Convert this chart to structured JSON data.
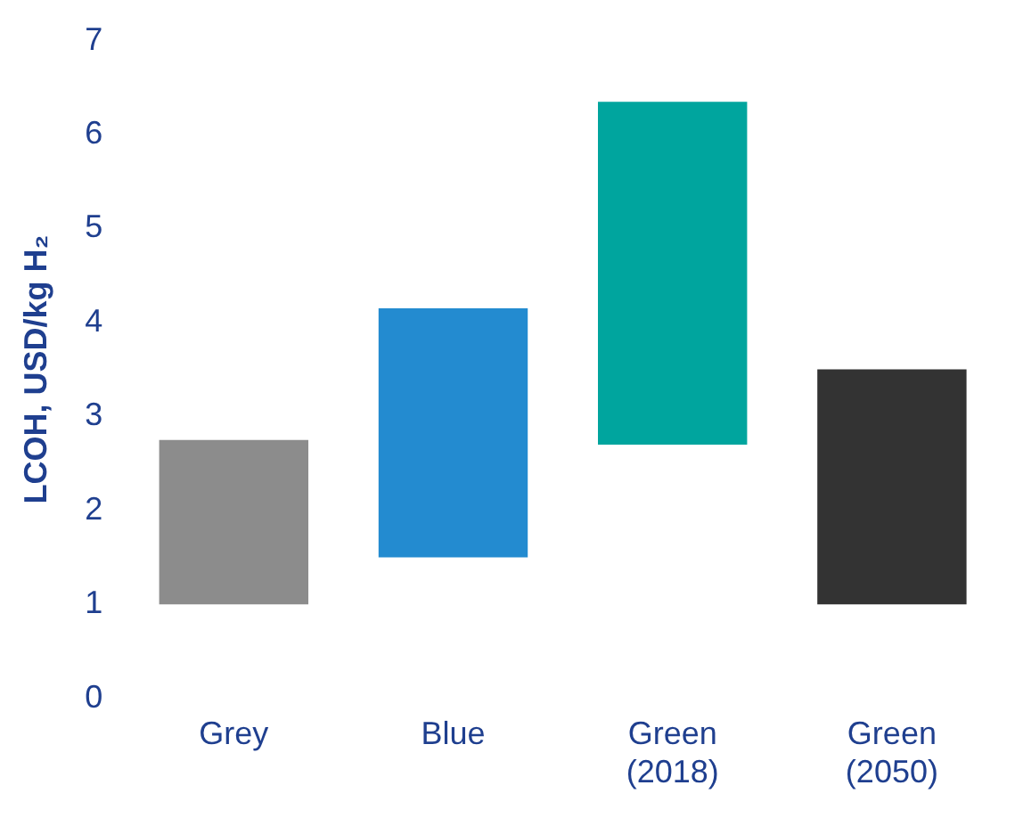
{
  "chart_data": {
    "type": "bar",
    "ylabel": "LCOH, USD/kg H₂",
    "categories": [
      "Grey",
      "Blue",
      "Green (2018)",
      "Green (2050)"
    ],
    "base": [
      1,
      1.5,
      2.7,
      1
    ],
    "values": [
      1.75,
      2.65,
      3.65,
      2.5
    ],
    "colors": [
      "#8c8c8c",
      "#238bd0",
      "#00a59e",
      "#333333"
    ],
    "ylim": [
      0,
      7
    ],
    "yticks": [
      0,
      1,
      2,
      3,
      4,
      5,
      6,
      7
    ],
    "grid": false,
    "legend": false
  }
}
